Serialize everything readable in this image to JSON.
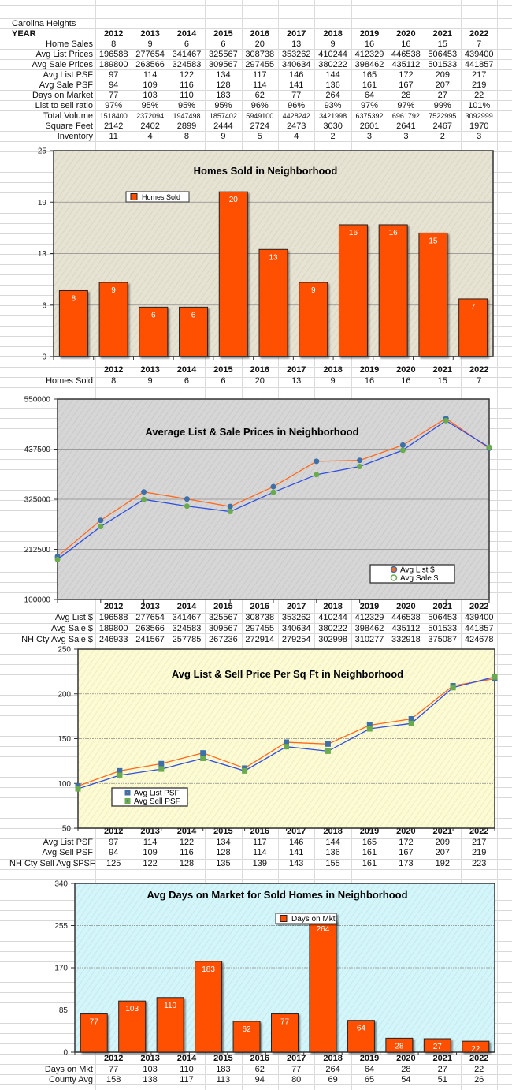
{
  "sheet_title": "Carolina Heights",
  "year_header": "YEAR",
  "years": [
    "2012",
    "2013",
    "2014",
    "2015",
    "2016",
    "2017",
    "2018",
    "2019",
    "2020",
    "2021",
    "2022"
  ],
  "summary_rows": [
    {
      "label": "Home Sales",
      "values": [
        "8",
        "9",
        "6",
        "6",
        "20",
        "13",
        "9",
        "16",
        "16",
        "15",
        "7"
      ]
    },
    {
      "label": "Avg List Prices",
      "values": [
        "196588",
        "277654",
        "341467",
        "325567",
        "308738",
        "353262",
        "410244",
        "412329",
        "446538",
        "506453",
        "439400"
      ]
    },
    {
      "label": "Avg Sale Prices",
      "values": [
        "189800",
        "263566",
        "324583",
        "309567",
        "297455",
        "340634",
        "380222",
        "398462",
        "435112",
        "501533",
        "441857"
      ]
    },
    {
      "label": "Avg List PSF",
      "values": [
        "97",
        "114",
        "122",
        "134",
        "117",
        "146",
        "144",
        "165",
        "172",
        "209",
        "217"
      ]
    },
    {
      "label": "Avg Sale PSF",
      "values": [
        "94",
        "109",
        "116",
        "128",
        "114",
        "141",
        "136",
        "161",
        "167",
        "207",
        "219"
      ]
    },
    {
      "label": "Days on Market",
      "values": [
        "77",
        "103",
        "110",
        "183",
        "62",
        "77",
        "264",
        "64",
        "28",
        "27",
        "22"
      ]
    },
    {
      "label": "List to sell ratio",
      "values": [
        "97%",
        "95%",
        "95%",
        "95%",
        "96%",
        "96%",
        "93%",
        "97%",
        "97%",
        "99%",
        "101%"
      ]
    },
    {
      "label": "Total Volume",
      "values": [
        "1518400",
        "2372094",
        "1947498",
        "1857402",
        "5949100",
        "4428242",
        "3421998",
        "6375392",
        "6961792",
        "7522995",
        "3092999"
      ],
      "small": true
    },
    {
      "label": "Square Feet",
      "values": [
        "2142",
        "2402",
        "2899",
        "2444",
        "2724",
        "2473",
        "3030",
        "2601",
        "2641",
        "2467",
        "1970"
      ]
    },
    {
      "label": "Inventory",
      "values": [
        "11",
        "4",
        "8",
        "9",
        "5",
        "4",
        "2",
        "3",
        "3",
        "2",
        "3"
      ]
    }
  ],
  "chart_data": [
    {
      "type": "bar",
      "title": "Homes Sold in Neighborhood",
      "categories": [
        "2012",
        "2013",
        "2014",
        "2015",
        "2016",
        "2017",
        "2018",
        "2019",
        "2020",
        "2021",
        "2022"
      ],
      "series": [
        {
          "name": "Homes Sold",
          "values": [
            8,
            9,
            6,
            6,
            20,
            13,
            9,
            16,
            16,
            15,
            7
          ],
          "color": "#ff5000"
        }
      ],
      "ylim": [
        0,
        25
      ],
      "ticks": [
        0,
        6.25,
        12.5,
        18.75,
        25
      ],
      "tick_labels": [
        "0",
        "6",
        "13",
        "19",
        "25"
      ],
      "background": "#e7e3d3",
      "legend": "upper-left",
      "table_rows": [
        {
          "label": "Homes Sold",
          "values": [
            "8",
            "9",
            "6",
            "6",
            "20",
            "13",
            "9",
            "16",
            "16",
            "15",
            "7"
          ]
        }
      ]
    },
    {
      "type": "line",
      "title": "Average List & Sale Prices in Neighborhood",
      "categories": [
        "2012",
        "2013",
        "2014",
        "2015",
        "2016",
        "2017",
        "2018",
        "2019",
        "2020",
        "2021",
        "2022"
      ],
      "series": [
        {
          "name": "Avg List $",
          "values": [
            196588,
            277654,
            341467,
            325567,
            308738,
            353262,
            410244,
            412329,
            446538,
            506453,
            439400
          ],
          "color": "#ff6a20",
          "marker": "#3d6fa8"
        },
        {
          "name": "Avg Sale $",
          "values": [
            189800,
            263566,
            324583,
            309567,
            297455,
            340634,
            380222,
            398462,
            435112,
            501533,
            441857
          ],
          "color": "#2f4fe0",
          "marker": "#6aab4e"
        }
      ],
      "ylim": [
        100000,
        550000
      ],
      "ticks": [
        100000,
        212500,
        325000,
        437500,
        550000
      ],
      "tick_labels": [
        "100000",
        "212500",
        "325000",
        "437500",
        "550000"
      ],
      "background": "#d6d6d6",
      "legend": "lower-right",
      "table_rows": [
        {
          "label": "Avg List $",
          "values": [
            "196588",
            "277654",
            "341467",
            "325567",
            "308738",
            "353262",
            "410244",
            "412329",
            "446538",
            "506453",
            "439400"
          ]
        },
        {
          "label": "Avg Sale $",
          "values": [
            "189800",
            "263566",
            "324583",
            "309567",
            "297455",
            "340634",
            "380222",
            "398462",
            "435112",
            "501533",
            "441857"
          ]
        },
        {
          "label": "NH Cty Avg Sale $",
          "values": [
            "246933",
            "241567",
            "257785",
            "267236",
            "272914",
            "279254",
            "302998",
            "310277",
            "332918",
            "375087",
            "424678"
          ]
        }
      ]
    },
    {
      "type": "line",
      "title": "Avg List & Sell Price Per Sq Ft in Neighborhood",
      "categories": [
        "2012",
        "2013",
        "2014",
        "2015",
        "2016",
        "2017",
        "2018",
        "2019",
        "2020",
        "2021",
        "2022"
      ],
      "series": [
        {
          "name": "Avg List PSF",
          "values": [
            97,
            114,
            122,
            134,
            117,
            146,
            144,
            165,
            172,
            209,
            217
          ],
          "color": "#ff6a20",
          "marker": "#3d6fa8"
        },
        {
          "name": "Avg Sell PSF",
          "values": [
            94,
            109,
            116,
            128,
            114,
            141,
            136,
            161,
            167,
            207,
            219
          ],
          "color": "#2f4fe0",
          "marker": "#6aab4e"
        }
      ],
      "ylim": [
        50,
        250
      ],
      "ticks": [
        50,
        100,
        150,
        200,
        250
      ],
      "tick_labels": [
        "50",
        "100",
        "150",
        "200",
        "250"
      ],
      "background": "#fdfbd2",
      "legend": "lower-left",
      "table_rows": [
        {
          "label": "Avg List PSF",
          "values": [
            "97",
            "114",
            "122",
            "134",
            "117",
            "146",
            "144",
            "165",
            "172",
            "209",
            "217"
          ]
        },
        {
          "label": "Avg Sell PSF",
          "values": [
            "94",
            "109",
            "116",
            "128",
            "114",
            "141",
            "136",
            "161",
            "167",
            "207",
            "219"
          ]
        },
        {
          "label": "NH Cty Sell Avg $PSF",
          "values": [
            "125",
            "122",
            "128",
            "135",
            "139",
            "143",
            "155",
            "161",
            "173",
            "192",
            "223"
          ]
        }
      ]
    },
    {
      "type": "bar",
      "title": "Avg Days on Market for Sold Homes in Neighborhood",
      "categories": [
        "2012",
        "2013",
        "2014",
        "2015",
        "2016",
        "2017",
        "2018",
        "2019",
        "2020",
        "2021",
        "2022"
      ],
      "series": [
        {
          "name": "Days on Mkt",
          "values": [
            77,
            103,
            110,
            183,
            62,
            77,
            264,
            64,
            28,
            27,
            22
          ],
          "color": "#ff5000"
        }
      ],
      "ylim": [
        0,
        340
      ],
      "ticks": [
        0,
        85,
        170,
        255,
        340
      ],
      "tick_labels": [
        "0",
        "85",
        "170",
        "255",
        "340"
      ],
      "background": "#d3f6fb",
      "legend": "upper-center",
      "table_rows": [
        {
          "label": "Days on Mkt",
          "values": [
            "77",
            "103",
            "110",
            "183",
            "62",
            "77",
            "264",
            "64",
            "28",
            "27",
            "22"
          ]
        },
        {
          "label": "County Avg",
          "values": [
            "158",
            "138",
            "117",
            "113",
            "94",
            "80",
            "69",
            "65",
            "54",
            "51",
            "26"
          ]
        }
      ]
    }
  ]
}
